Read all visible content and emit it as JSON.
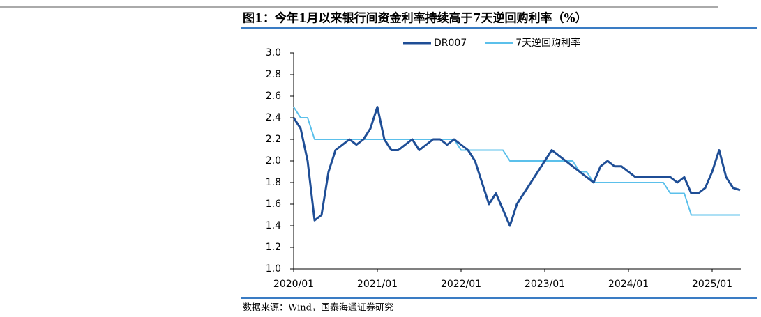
{
  "chart_data": {
    "type": "line",
    "title": "图1：今年1月以来银行间资金利率持续高于7天逆回购利率（%）",
    "source": "数据来源：Wind，国泰海通证券研究",
    "x": [
      "2020/01",
      "2020/02",
      "2020/03",
      "2020/04",
      "2020/05",
      "2020/06",
      "2020/07",
      "2020/08",
      "2020/09",
      "2020/10",
      "2020/11",
      "2020/12",
      "2021/01",
      "2021/02",
      "2021/03",
      "2021/04",
      "2021/05",
      "2021/06",
      "2021/07",
      "2021/08",
      "2021/09",
      "2021/10",
      "2021/11",
      "2021/12",
      "2022/01",
      "2022/02",
      "2022/03",
      "2022/04",
      "2022/05",
      "2022/06",
      "2022/07",
      "2022/08",
      "2022/09",
      "2022/10",
      "2022/11",
      "2022/12",
      "2023/01",
      "2023/02",
      "2023/03",
      "2023/04",
      "2023/05",
      "2023/06",
      "2023/07",
      "2023/08",
      "2023/09",
      "2023/10",
      "2023/11",
      "2023/12",
      "2024/01",
      "2024/02",
      "2024/03",
      "2024/04",
      "2024/05",
      "2024/06",
      "2024/07",
      "2024/08",
      "2024/09",
      "2024/10",
      "2024/11",
      "2024/12",
      "2025/01",
      "2025/02",
      "2025/03",
      "2025/04",
      "2025/05"
    ],
    "series": [
      {
        "name": "DR007",
        "color": "#1f4e96",
        "width": 3,
        "values": [
          2.4,
          2.3,
          2.0,
          1.45,
          1.5,
          1.9,
          2.1,
          2.15,
          2.2,
          2.15,
          2.2,
          2.3,
          2.5,
          2.2,
          2.1,
          2.1,
          2.15,
          2.2,
          2.1,
          2.15,
          2.2,
          2.2,
          2.15,
          2.2,
          2.15,
          2.1,
          2.0,
          1.8,
          1.6,
          1.7,
          1.55,
          1.4,
          1.6,
          1.7,
          1.8,
          1.9,
          2.0,
          2.1,
          2.05,
          2.0,
          1.95,
          1.9,
          1.85,
          1.8,
          1.95,
          2.0,
          1.95,
          1.95,
          1.9,
          1.85,
          1.85,
          1.85,
          1.85,
          1.85,
          1.85,
          1.8,
          1.85,
          1.7,
          1.7,
          1.75,
          1.9,
          2.1,
          1.85,
          1.75,
          1.73
        ]
      },
      {
        "name": "7天逆回购利率",
        "color": "#5bc0eb",
        "width": 2,
        "values": [
          2.5,
          2.4,
          2.4,
          2.2,
          2.2,
          2.2,
          2.2,
          2.2,
          2.2,
          2.2,
          2.2,
          2.2,
          2.2,
          2.2,
          2.2,
          2.2,
          2.2,
          2.2,
          2.2,
          2.2,
          2.2,
          2.2,
          2.2,
          2.2,
          2.1,
          2.1,
          2.1,
          2.1,
          2.1,
          2.1,
          2.1,
          2.0,
          2.0,
          2.0,
          2.0,
          2.0,
          2.0,
          2.0,
          2.0,
          2.0,
          2.0,
          1.9,
          1.9,
          1.8,
          1.8,
          1.8,
          1.8,
          1.8,
          1.8,
          1.8,
          1.8,
          1.8,
          1.8,
          1.8,
          1.7,
          1.7,
          1.7,
          1.5,
          1.5,
          1.5,
          1.5,
          1.5,
          1.5,
          1.5,
          1.5
        ]
      }
    ],
    "ylim": [
      1.0,
      3.0
    ],
    "yticks": [
      {
        "value": 1.0,
        "label": "1.0"
      },
      {
        "value": 1.2,
        "label": "1.2"
      },
      {
        "value": 1.4,
        "label": "1.4"
      },
      {
        "value": 1.6,
        "label": "1.6"
      },
      {
        "value": 1.8,
        "label": "1.8"
      },
      {
        "value": 2.0,
        "label": "2.0"
      },
      {
        "value": 2.2,
        "label": "2.2"
      },
      {
        "value": 2.4,
        "label": "2.4"
      },
      {
        "value": 2.6,
        "label": "2.6"
      },
      {
        "value": 2.8,
        "label": "2.8"
      },
      {
        "value": 3.0,
        "label": "3.0"
      }
    ],
    "xticks": [
      "2020/01",
      "2021/01",
      "2022/01",
      "2023/01",
      "2024/01",
      "2025/01"
    ],
    "legend": "top"
  }
}
